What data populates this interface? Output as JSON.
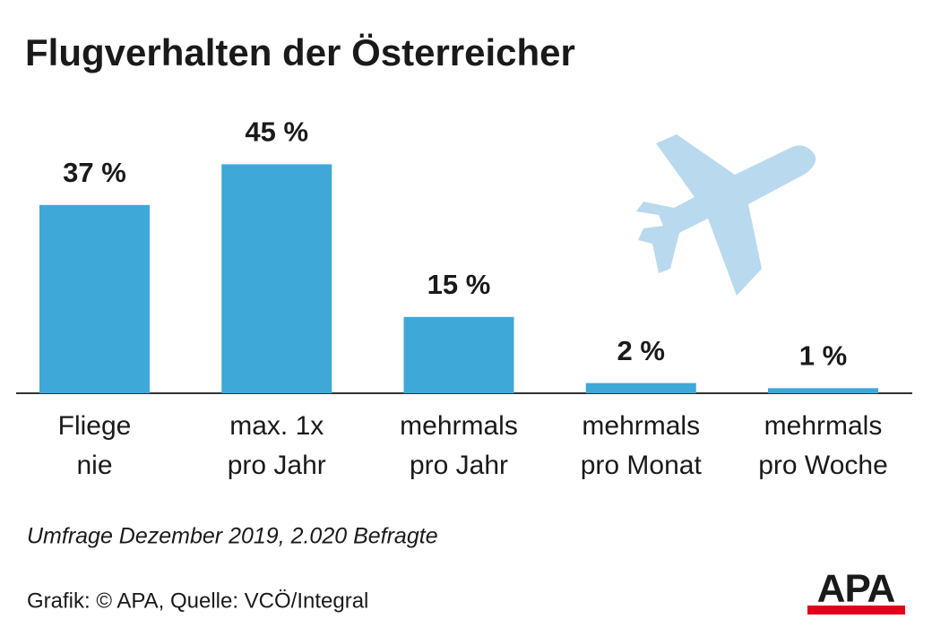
{
  "chart_data": {
    "type": "bar",
    "title": "Flugverhalten der Österreicher",
    "categories": [
      [
        "Fliege",
        "nie"
      ],
      [
        "max. 1x",
        "pro Jahr"
      ],
      [
        "mehrmals",
        "pro Jahr"
      ],
      [
        "mehrmals",
        "pro Monat"
      ],
      [
        "mehrmals",
        "pro Woche"
      ]
    ],
    "values": [
      37,
      45,
      15,
      2,
      1
    ],
    "value_labels": [
      "37 %",
      "45 %",
      "15 %",
      "2 %",
      "1 %"
    ],
    "color": "#3ea8d8",
    "note": "Umfrage Dezember 2019, 2.020 Befragte",
    "source": "Grafik: © APA, Quelle: VCÖ/Integral",
    "logo": "APA"
  }
}
